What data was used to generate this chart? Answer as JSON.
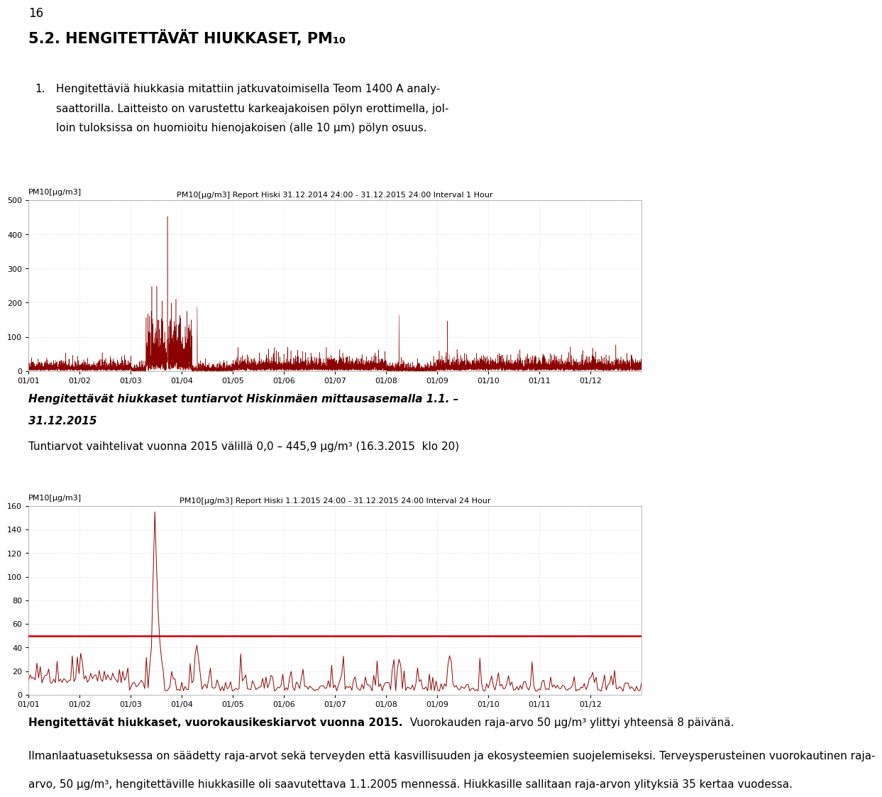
{
  "page_number": "16",
  "section_title": "5.2. HENGITETTÄVÄT HIUKKASET, PM₁₀",
  "para1_num": "1.",
  "para1_line1": "Hengitettäviä hiukkasia mitattiin jatkuvatoimisella Teom 1400 A analy-",
  "para1_line2": "saattorilla. Laitteisto on varustettu karkeajakoisen pölyn erottimella, jol-",
  "para1_line3": "loin tuloksissa on huomioitu hienojakoisen (alle 10 µm) pölyn osuus.",
  "chart1_title": "PM10[µg/m3] Report Hiski 31.12.2014 24:00 - 31.12.2015 24:00 Interval 1 Hour",
  "chart1_ylabel": "PM10[µg/m3]",
  "chart1_ylim": [
    0,
    500
  ],
  "chart1_yticks": [
    0,
    100,
    200,
    300,
    400,
    500
  ],
  "chart1_xticks": [
    "01/01",
    "01/02",
    "01/03",
    "01/04",
    "01/05",
    "01/06",
    "01/07",
    "01/08",
    "01/09",
    "01/10",
    "01/11",
    "01/12"
  ],
  "chart1_line_color": "#8B0000",
  "mid_title_line1": "Hengitettävät hiukkaset tuntiarvot Hiskinmäen mittausasemalla 1.1. –",
  "mid_title_line2": "31.12.2015",
  "mid_subtitle": "Tuntiarvot vaihtelivat vuonna 2015 välillä 0,0 – 445,9 µg/m³ (16.3.2015  klo 20)",
  "chart2_title": "PM10[µg/m3] Report Hiski 1.1.2015 24:00 - 31.12.2015 24:00 Interval 24 Hour",
  "chart2_ylabel": "PM10[µg/m3]",
  "chart2_ylim": [
    0,
    160
  ],
  "chart2_yticks": [
    0,
    20,
    40,
    60,
    80,
    100,
    120,
    140,
    160
  ],
  "chart2_xticks": [
    "01/01",
    "01/02",
    "01/03",
    "01/04",
    "01/05",
    "01/06",
    "01/07",
    "01/08",
    "01/09",
    "01/10",
    "01/11",
    "01/12"
  ],
  "chart2_line_color": "#8B0000",
  "chart2_limit_value": 50,
  "chart2_limit_color": "#CC0000",
  "bottom_bold": "Hengitettävät hiukkaset, vuorokausikeskiarvot vuonna 2015.",
  "bottom_text1": " Vuorokauden raja-arvo 50 µg/m³ ylittyi yhteensä 8 päivänä.",
  "bottom_text2_l1": "Ilmanlaatuasetuksessa on säädetty raja-arvot sekä terveyden että kasvillisuuden ja ekosysteemien suojelemiseksi. Terveysperusteinen vuorokautinen raja-",
  "bottom_text2_l2": "arvo, 50 µg/m³, hengitettäville hiukkasille oli saavutettava 1.1.2005 mennessä. Hiukkasille sallitaan raja-arvon ylityksiä 35 kertaa vuodessa.",
  "background_color": "#ffffff",
  "text_color": "#000000",
  "grid_color": "#cccccc",
  "chart_bg": "#ffffff"
}
